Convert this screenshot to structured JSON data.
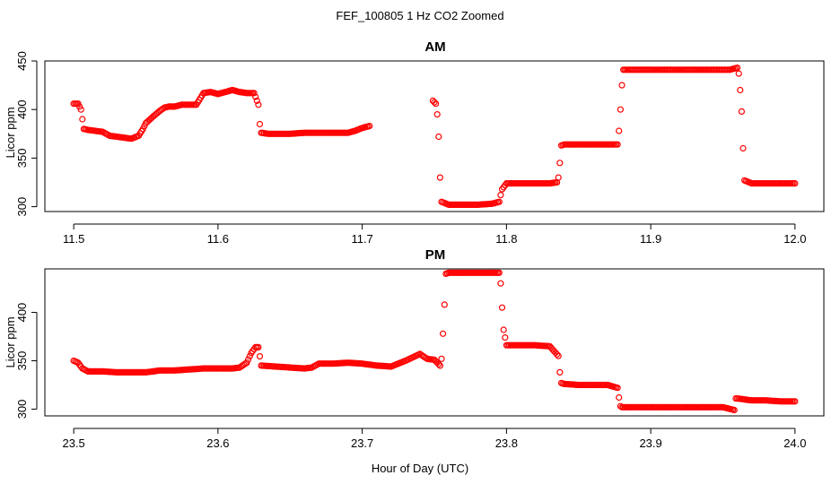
{
  "figure": {
    "title": "FEF_100805  1 Hz CO2 Zoomed",
    "xlabel": "Hour of Day (UTC)",
    "marker_color": "#ff0000"
  },
  "chart_data": [
    {
      "type": "scatter",
      "title": "AM",
      "xlabel": "",
      "ylabel": "Licor ppm",
      "xlim": [
        11.48,
        12.02
      ],
      "ylim": [
        295,
        450
      ],
      "xticks": [
        "11.5",
        "11.6",
        "11.7",
        "11.8",
        "11.9",
        "12.0"
      ],
      "xtick_values": [
        11.5,
        11.6,
        11.7,
        11.8,
        11.9,
        12.0
      ],
      "yticks": [
        "300",
        "350",
        "400",
        "450"
      ],
      "ytick_values": [
        300,
        350,
        400,
        450
      ],
      "grid": false,
      "legend": "none",
      "series": [
        {
          "color": "#ff0000",
          "marker": "open-circle",
          "x": [
            11.5,
            11.503,
            11.505,
            11.506,
            11.507,
            11.51,
            11.515,
            11.52,
            11.525,
            11.53,
            11.535,
            11.54,
            11.545,
            11.548,
            11.55,
            11.553,
            11.556,
            11.56,
            11.563,
            11.566,
            11.57,
            11.575,
            11.58,
            11.585,
            11.59,
            11.595,
            11.6,
            11.605,
            11.61,
            11.615,
            11.62,
            11.625,
            11.628,
            11.629,
            11.63,
            11.635,
            11.64,
            11.65,
            11.66,
            11.67,
            11.68,
            11.69,
            11.695,
            11.7,
            11.705,
            11.749,
            11.751,
            11.752,
            11.753,
            11.754,
            11.755,
            11.76,
            11.77,
            11.78,
            11.79,
            11.795,
            11.796,
            11.797,
            11.8,
            11.81,
            11.82,
            11.83,
            11.835,
            11.836,
            11.837,
            11.838,
            11.84,
            11.85,
            11.86,
            11.87,
            11.877,
            11.878,
            11.879,
            11.88,
            11.881,
            11.885,
            11.9,
            11.92,
            11.94,
            11.955,
            11.96,
            11.961,
            11.962,
            11.963,
            11.964,
            11.965,
            11.97,
            11.98,
            11.99,
            12.0
          ],
          "y": [
            406,
            406,
            400,
            390,
            380,
            379,
            378,
            377,
            373,
            372,
            371,
            370,
            373,
            380,
            386,
            390,
            394,
            399,
            402,
            403,
            403,
            405,
            405,
            405,
            417,
            418,
            416,
            418,
            420,
            418,
            417,
            417,
            405,
            385,
            376,
            375,
            375,
            375,
            376,
            376,
            376,
            376,
            378,
            381,
            383,
            409,
            406,
            395,
            372,
            330,
            305,
            302,
            302,
            302,
            303,
            305,
            312,
            318,
            324,
            324,
            324,
            324,
            325,
            330,
            345,
            363,
            364,
            364,
            364,
            364,
            364,
            378,
            400,
            425,
            441,
            441,
            441,
            441,
            441,
            441,
            443,
            437,
            420,
            398,
            360,
            327,
            324,
            324,
            324,
            324
          ]
        }
      ]
    },
    {
      "type": "scatter",
      "title": "PM",
      "xlabel": "",
      "ylabel": "Licor ppm",
      "xlim": [
        23.48,
        24.02
      ],
      "ylim": [
        293,
        445
      ],
      "xticks": [
        "23.5",
        "23.6",
        "23.7",
        "23.8",
        "23.9",
        "24.0"
      ],
      "xtick_values": [
        23.5,
        23.6,
        23.7,
        23.8,
        23.9,
        24.0
      ],
      "yticks": [
        "300",
        "350",
        "400"
      ],
      "ytick_values": [
        300,
        350,
        400
      ],
      "grid": false,
      "legend": "none",
      "series": [
        {
          "color": "#ff0000",
          "marker": "open-circle",
          "x": [
            23.5,
            23.503,
            23.506,
            23.51,
            23.52,
            23.53,
            23.54,
            23.55,
            23.56,
            23.57,
            23.58,
            23.59,
            23.6,
            23.61,
            23.615,
            23.62,
            23.623,
            23.626,
            23.628,
            23.63,
            23.64,
            23.65,
            23.66,
            23.665,
            23.67,
            23.68,
            23.69,
            23.7,
            23.71,
            23.72,
            23.73,
            23.74,
            23.745,
            23.75,
            23.754,
            23.755,
            23.756,
            23.757,
            23.758,
            23.76,
            23.77,
            23.78,
            23.79,
            23.795,
            23.796,
            23.797,
            23.798,
            23.8,
            23.81,
            23.82,
            23.83,
            23.836,
            23.837,
            23.838,
            23.84,
            23.85,
            23.86,
            23.87,
            23.877,
            23.878,
            23.879,
            23.88,
            23.89,
            23.9,
            23.91,
            23.92,
            23.93,
            23.94,
            23.95,
            23.958,
            23.959,
            23.96,
            23.97,
            23.98,
            23.99,
            24.0
          ],
          "y": [
            350,
            348,
            342,
            339,
            339,
            338,
            338,
            338,
            340,
            340,
            341,
            342,
            342,
            342,
            343,
            348,
            358,
            364,
            364,
            345,
            344,
            343,
            342,
            343,
            347,
            347,
            348,
            347,
            345,
            344,
            350,
            357,
            352,
            351,
            345,
            352,
            378,
            408,
            440,
            441,
            441,
            441,
            441,
            441,
            430,
            405,
            382,
            366,
            366,
            366,
            365,
            355,
            338,
            327,
            326,
            325,
            325,
            325,
            322,
            312,
            303,
            302,
            302,
            302,
            302,
            302,
            302,
            302,
            302,
            299,
            311,
            311,
            309,
            309,
            308,
            308
          ]
        }
      ]
    }
  ]
}
